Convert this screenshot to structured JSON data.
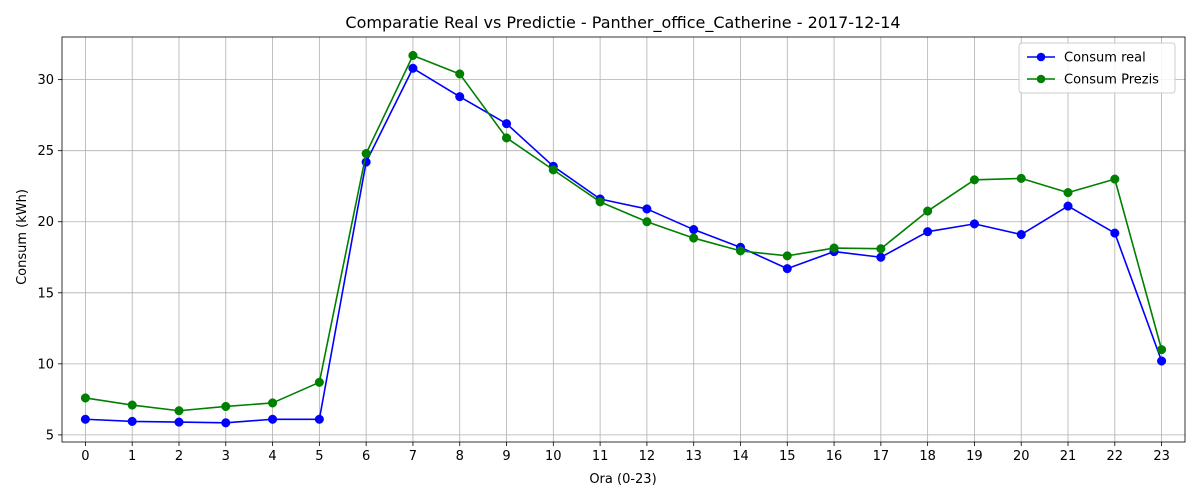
{
  "chart_data": {
    "type": "line",
    "title": "Comparatie Real vs Predictie - Panther_office_Catherine - 2017-12-14",
    "xlabel": "Ora (0-23)",
    "ylabel": "Consum (kWh)",
    "x": [
      0,
      1,
      2,
      3,
      4,
      5,
      6,
      7,
      8,
      9,
      10,
      11,
      12,
      13,
      14,
      15,
      16,
      17,
      18,
      19,
      20,
      21,
      22,
      23
    ],
    "xlim": [
      -0.5,
      23.5
    ],
    "ylim": [
      4.5,
      33.0
    ],
    "yticks": [
      5,
      10,
      15,
      20,
      25,
      30
    ],
    "grid": true,
    "legend_position": "top-right",
    "series": [
      {
        "name": "Consum real",
        "color": "#0000ff",
        "values": [
          6.1,
          5.95,
          5.9,
          5.85,
          6.1,
          6.1,
          24.2,
          30.8,
          28.8,
          26.9,
          23.9,
          21.6,
          20.9,
          19.45,
          18.2,
          16.7,
          17.9,
          17.5,
          19.3,
          19.85,
          19.1,
          21.1,
          19.2,
          10.2
        ]
      },
      {
        "name": "Consum Prezis",
        "color": "#008000",
        "values": [
          7.6,
          7.1,
          6.7,
          7.0,
          7.25,
          8.7,
          24.8,
          31.7,
          30.4,
          25.9,
          23.65,
          21.4,
          20.0,
          18.85,
          17.95,
          17.6,
          18.15,
          18.1,
          20.75,
          22.95,
          23.05,
          22.05,
          23.0,
          11.0
        ]
      }
    ]
  }
}
